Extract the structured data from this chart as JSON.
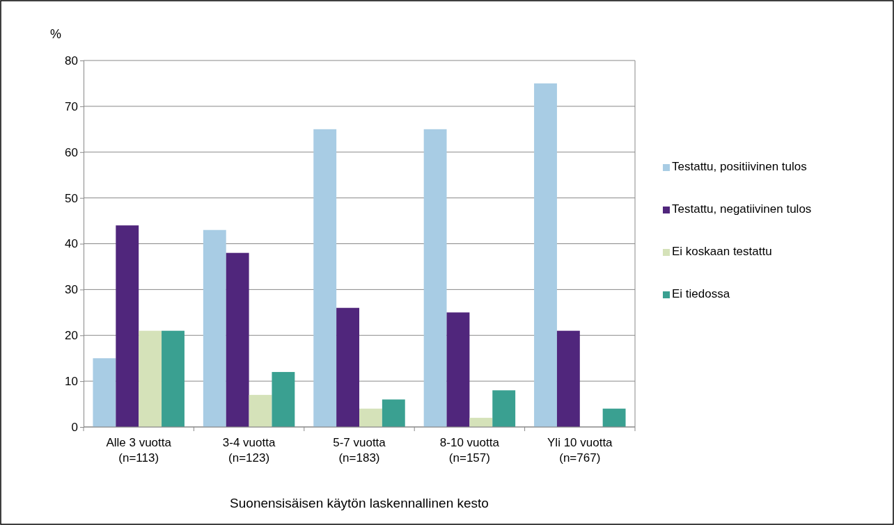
{
  "chart_data": {
    "type": "bar",
    "xlabel": "Suonensisäisen käytön laskennallinen kesto",
    "ylabel": "%",
    "categories": [
      "Alle 3 vuotta\n(n=113)",
      "3-4 vuotta\n(n=123)",
      "5-7 vuotta\n(n=183)",
      "8-10 vuotta\n(n=157)",
      "Yli 10 vuotta\n(n=767)"
    ],
    "series": [
      {
        "name": "Testattu, positiivinen tulos",
        "color": "#a8cce4",
        "values": [
          15,
          43,
          65,
          65,
          75
        ]
      },
      {
        "name": "Testattu, negatiivinen tulos",
        "color": "#50267c",
        "values": [
          44,
          38,
          26,
          25,
          21
        ]
      },
      {
        "name": "Ei koskaan testattu",
        "color": "#d5e2b9",
        "values": [
          21,
          7,
          4,
          2,
          0
        ]
      },
      {
        "name": "Ei tiedossa",
        "color": "#3aa091",
        "values": [
          21,
          12,
          6,
          8,
          4
        ]
      }
    ],
    "ylim": [
      0,
      80
    ],
    "yticks": [
      0,
      10,
      20,
      30,
      40,
      50,
      60,
      70,
      80
    ],
    "grid": "y",
    "legend": "right"
  }
}
